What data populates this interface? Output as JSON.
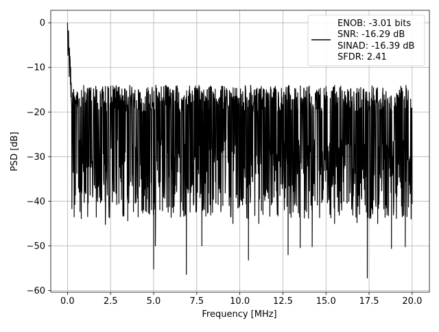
{
  "chart_data": {
    "type": "line",
    "title": "",
    "xlabel": "Frequency [MHz]",
    "ylabel": "PSD [dB]",
    "xlim": [
      -0.97,
      21.0
    ],
    "ylim": [
      -60.4,
      2.8
    ],
    "grid": true,
    "xticks": [
      0.0,
      2.5,
      5.0,
      7.5,
      10.0,
      12.5,
      15.0,
      17.5,
      20.0
    ],
    "xtick_labels": [
      "0.0",
      "2.5",
      "5.0",
      "7.5",
      "10.0",
      "12.5",
      "15.0",
      "17.5",
      "20.0"
    ],
    "yticks": [
      0,
      -10,
      -20,
      -30,
      -40,
      -50,
      -60
    ],
    "ytick_labels": [
      "0",
      "−10",
      "−20",
      "−30",
      "−40",
      "−50",
      "−60"
    ],
    "legend": {
      "placement": "top-right",
      "lines": [
        "ENOB: -3.01 bits",
        "SNR: -16.29 dB",
        "SINAD: -16.39 dB",
        "SFDR: 2.41"
      ]
    },
    "series": [
      {
        "color": "#000000",
        "x_range": [
          0.0,
          20.0
        ],
        "peak": {
          "x": 0.0,
          "y": 0.0
        },
        "noise_band": {
          "upper": -14.0,
          "median": -22.0,
          "lower": -36.0
        },
        "deep_dips": [
          {
            "x": 2.2,
            "y": -45.2
          },
          {
            "x": 3.5,
            "y": -44.4
          },
          {
            "x": 4.1,
            "y": -43.5
          },
          {
            "x": 5.0,
            "y": -55.2
          },
          {
            "x": 5.1,
            "y": -50.0
          },
          {
            "x": 6.9,
            "y": -56.4
          },
          {
            "x": 7.8,
            "y": -50.0
          },
          {
            "x": 9.6,
            "y": -45.0
          },
          {
            "x": 10.5,
            "y": -53.2
          },
          {
            "x": 11.1,
            "y": -45.0
          },
          {
            "x": 12.8,
            "y": -52.0
          },
          {
            "x": 13.5,
            "y": -50.4
          },
          {
            "x": 14.2,
            "y": -50.2
          },
          {
            "x": 15.5,
            "y": -45.0
          },
          {
            "x": 16.8,
            "y": -44.8
          },
          {
            "x": 17.4,
            "y": -57.2
          },
          {
            "x": 18.0,
            "y": -45.0
          },
          {
            "x": 18.8,
            "y": -50.6
          },
          {
            "x": 19.6,
            "y": -50.2
          }
        ]
      }
    ]
  }
}
